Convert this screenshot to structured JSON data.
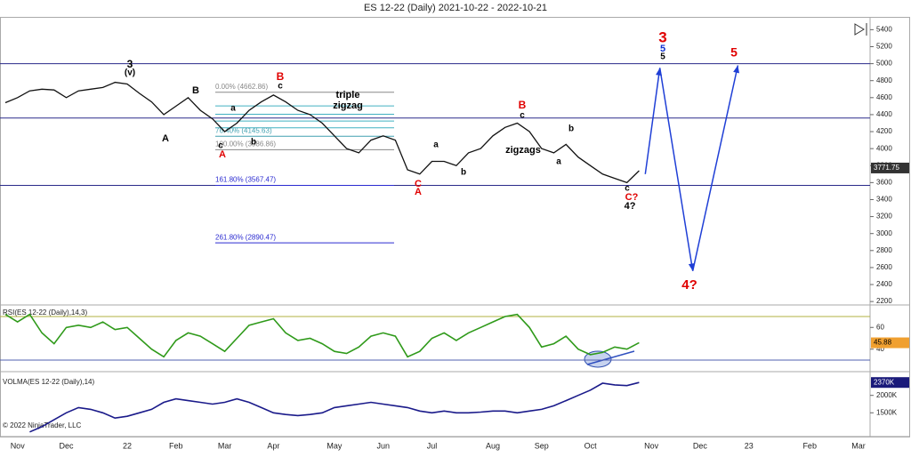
{
  "chart_data": [
    {
      "type": "line",
      "title": "ES 12-22 (Daily)  2021-10-22 - 2022-10-21",
      "copyright": "© 2022 NinjaTrader, LLC",
      "categories": [
        null,
        "Nov",
        null,
        null,
        null,
        "Dec",
        null,
        null,
        null,
        null,
        "22",
        null,
        null,
        null,
        "Feb",
        null,
        null,
        null,
        "Mar",
        null,
        null,
        null,
        "Apr",
        null,
        null,
        null,
        null,
        "May",
        null,
        null,
        null,
        "Jun",
        null,
        null,
        null,
        "Jul",
        null,
        null,
        null,
        null,
        "Aug",
        null,
        null,
        null,
        "Sep",
        null,
        null,
        null,
        "Oct",
        null,
        null,
        null,
        null,
        "Nov",
        null,
        null,
        null,
        "Dec",
        null,
        null,
        null,
        "23",
        null,
        null,
        null,
        null,
        "Feb",
        null,
        null,
        null,
        "Mar"
      ],
      "series": [
        {
          "name": "ES 12-22",
          "color": "#111111",
          "values": [
            4540,
            4600,
            4680,
            4700,
            4690,
            4600,
            4680,
            4700,
            4720,
            4780,
            4760,
            4650,
            4550,
            4400,
            4500,
            4600,
            4450,
            4350,
            4200,
            4300,
            4450,
            4550,
            4630,
            4550,
            4450,
            4400,
            4300,
            4150,
            4000,
            3950,
            4100,
            4150,
            4100,
            3750,
            3700,
            3850,
            3850,
            3800,
            3950,
            4000,
            4150,
            4250,
            4300,
            4200,
            4000,
            3950,
            4050,
            3900,
            3800,
            3700,
            3650,
            3600,
            3740,
            null,
            null,
            null,
            null,
            null,
            null,
            null,
            null,
            null,
            null,
            null,
            null,
            null,
            null,
            null,
            null,
            null,
            null
          ]
        }
      ],
      "last_price": 3771.75,
      "ylim": [
        2170,
        5540
      ],
      "yticks": [
        2200,
        2400,
        2600,
        2800,
        3000,
        3200,
        3400,
        3600,
        3800,
        4000,
        4200,
        4400,
        4600,
        4800,
        5000,
        5200,
        5400
      ],
      "levels": [
        5000,
        4360,
        3567.47
      ],
      "level_color": "#2a2a8a",
      "fib": [
        {
          "value": 4662.86,
          "label": "0.00% (4662.86)",
          "color": "#888888"
        },
        {
          "value": 4503,
          "color": "#40b0c0"
        },
        {
          "value": 4404,
          "color": "#40b0c0"
        },
        {
          "value": 4325,
          "color": "#40b0c0"
        },
        {
          "value": 4245,
          "color": "#40b0c0"
        },
        {
          "value": 4145.63,
          "label": "76.40% (4145.63)",
          "color": "#40a0b0"
        },
        {
          "value": 3986.86,
          "label": "100.00% (3986.86)",
          "color": "#888888"
        },
        {
          "value": 3567.47,
          "label": "161.80% (3567.47)",
          "color": "#2a2ad0"
        },
        {
          "value": 2890.47,
          "label": "261.80% (2890.47)",
          "color": "#2a2ad0"
        }
      ],
      "projection": {
        "color": "#1f3fd6",
        "x": [
          52.5,
          53.7,
          56.4,
          60.1
        ],
        "values": [
          3700,
          4950,
          2560,
          4980
        ]
      },
      "annotations": [
        {
          "text": "3",
          "color": "#000000"
        },
        {
          "text": "(v)",
          "color": "#000000"
        },
        {
          "text": "A",
          "color": "#000000"
        },
        {
          "text": "B",
          "color": "#000000"
        },
        {
          "text": "A",
          "color": "#e00000"
        },
        {
          "text": "c",
          "color": "#000000"
        },
        {
          "text": "a",
          "color": "#000000"
        },
        {
          "text": "b",
          "color": "#000000"
        },
        {
          "text": "B",
          "color": "#e00000"
        },
        {
          "text": "c",
          "color": "#000000"
        },
        {
          "text": "triple",
          "color": "#000000"
        },
        {
          "text": "zigzag",
          "color": "#000000"
        },
        {
          "text": "C",
          "color": "#e00000"
        },
        {
          "text": "A",
          "color": "#e00000"
        },
        {
          "text": "a",
          "color": "#000000"
        },
        {
          "text": "b",
          "color": "#000000"
        },
        {
          "text": "B",
          "color": "#e00000"
        },
        {
          "text": "c",
          "color": "#000000"
        },
        {
          "text": "zigzags",
          "color": "#000000"
        },
        {
          "text": "a",
          "color": "#000000"
        },
        {
          "text": "b",
          "color": "#000000"
        },
        {
          "text": "c",
          "color": "#000000"
        },
        {
          "text": "C?",
          "color": "#e00000"
        },
        {
          "text": "4?",
          "color": "#000000"
        },
        {
          "text": "3",
          "color": "#e00000"
        },
        {
          "text": "5",
          "color": "#1030d0"
        },
        {
          "text": "5",
          "color": "#000000"
        },
        {
          "text": "5",
          "color": "#e00000"
        },
        {
          "text": "4?",
          "color": "#e00000"
        }
      ]
    },
    {
      "type": "line",
      "title": "RSI(ES 12-22 (Daily),14,3)",
      "series": [
        {
          "name": "RSI",
          "color": "#2f9a1a",
          "values": [
            72,
            65,
            72,
            55,
            45,
            60,
            62,
            60,
            65,
            58,
            60,
            50,
            40,
            33,
            48,
            55,
            52,
            45,
            38,
            50,
            62,
            65,
            68,
            55,
            48,
            50,
            45,
            38,
            36,
            42,
            52,
            55,
            52,
            33,
            38,
            50,
            55,
            48,
            55,
            60,
            65,
            70,
            72,
            60,
            42,
            45,
            52,
            40,
            35,
            37,
            42,
            40,
            46
          ]
        }
      ],
      "last": 45.88,
      "ylim": [
        21,
        79
      ],
      "yticks": [
        40,
        60
      ],
      "levels": [
        {
          "value": 70,
          "color": "#b0b040"
        },
        {
          "value": 30,
          "color": "#5060b0"
        }
      ]
    },
    {
      "type": "line",
      "title": "VOLMA(ES 12-22 (Daily),14)",
      "series": [
        {
          "name": "VOLMA",
          "color": "#1a1a8a",
          "values": [
            null,
            null,
            950,
            1100,
            1300,
            1500,
            1650,
            1600,
            1500,
            1350,
            1400,
            1500,
            1600,
            1800,
            1900,
            1850,
            1800,
            1750,
            1800,
            1900,
            1800,
            1650,
            1500,
            1450,
            1420,
            1450,
            1500,
            1650,
            1700,
            1750,
            1800,
            1750,
            1700,
            1650,
            1550,
            1500,
            1550,
            1500,
            1500,
            1520,
            1550,
            1550,
            1500,
            1550,
            1600,
            1700,
            1850,
            2000,
            2150,
            2350,
            2300,
            2280,
            2370
          ]
        }
      ],
      "last": {
        "value": 2370,
        "label": "2370K"
      },
      "ylim": [
        920,
        2605
      ],
      "yticks": [
        {
          "value": 1500,
          "label": "1500K"
        },
        {
          "value": 2000,
          "label": "2000K"
        }
      ]
    }
  ]
}
